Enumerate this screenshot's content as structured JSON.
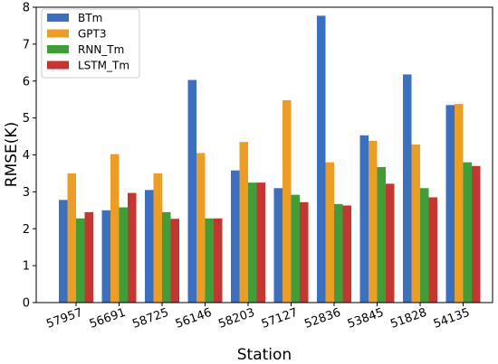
{
  "chart_data": {
    "type": "bar",
    "title": "",
    "xlabel": "Station",
    "ylabel": "RMSE(K)",
    "ylim": [
      0,
      8
    ],
    "yticks": [
      0,
      1,
      2,
      3,
      4,
      5,
      6,
      7,
      8
    ],
    "grid": false,
    "legend_position": "top-left",
    "categories": [
      "57957",
      "56691",
      "58725",
      "56146",
      "58203",
      "57127",
      "52836",
      "53845",
      "51828",
      "54135"
    ],
    "series": [
      {
        "name": "BTm",
        "color": "#3a70c2",
        "values": [
          2.78,
          2.5,
          3.05,
          6.03,
          3.58,
          3.1,
          7.77,
          4.53,
          6.18,
          5.35
        ]
      },
      {
        "name": "GPT3",
        "color": "#ec9d22",
        "values": [
          3.5,
          4.02,
          3.5,
          4.05,
          4.35,
          5.48,
          3.8,
          4.38,
          4.28,
          5.38
        ]
      },
      {
        "name": "RNN_Tm",
        "color": "#3e9e38",
        "values": [
          2.28,
          2.58,
          2.45,
          2.28,
          3.25,
          2.92,
          2.67,
          3.67,
          3.1,
          3.8
        ]
      },
      {
        "name": "LSTM_Tm",
        "color": "#c73530",
        "values": [
          2.45,
          2.97,
          2.27,
          2.28,
          3.25,
          2.72,
          2.63,
          3.22,
          2.85,
          3.7
        ]
      }
    ]
  }
}
